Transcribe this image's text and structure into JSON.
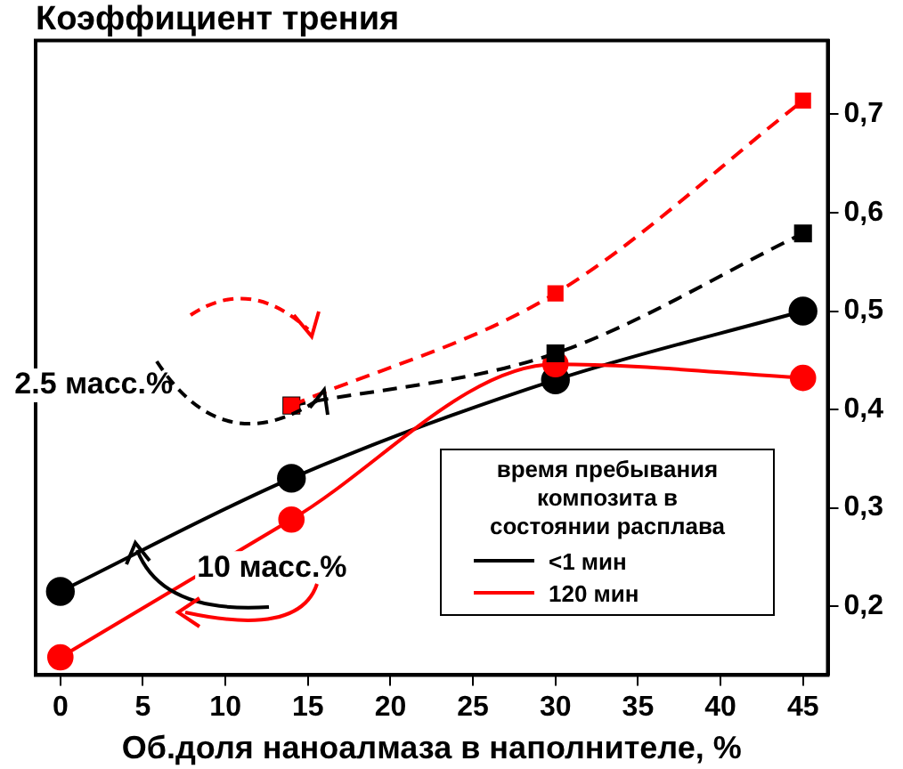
{
  "chart_data": {
    "type": "line",
    "title": "Коэффициент трения",
    "xlabel": "Об.доля наноалмаза в наполнителе, %",
    "legend_title": "время пребывания композита в состоянии расплава",
    "legend": "bottom right",
    "grid": false,
    "xlim": [
      -1.5,
      46.5
    ],
    "xticks": [
      0,
      5,
      10,
      15,
      20,
      25,
      30,
      35,
      40,
      45
    ],
    "ylim": [
      0.13,
      0.775
    ],
    "yticks": [
      {
        "value": 0.2,
        "label": "0,2"
      },
      {
        "value": 0.3,
        "label": "0,3"
      },
      {
        "value": 0.4,
        "label": "0,4"
      },
      {
        "value": 0.5,
        "label": "0,5"
      },
      {
        "value": 0.6,
        "label": "0,6"
      },
      {
        "value": 0.7,
        "label": "0,7"
      }
    ],
    "annotations": [
      {
        "text": "2.5 масс.%",
        "x": 16,
        "y": 0.42
      },
      {
        "text": "10 масс.%",
        "x": 4.5,
        "y": 0.265
      }
    ],
    "series": [
      {
        "name": "<1 мин",
        "color": "#000000",
        "x": [
          0,
          14,
          30,
          45
        ],
        "values": [
          0.215,
          0.33,
          0.43,
          0.5
        ],
        "marker": "circle",
        "line_style": "solid"
      },
      {
        "name": "120 мин",
        "color": "#ff0000",
        "x": [
          0,
          14,
          30,
          45
        ],
        "values": [
          0.148,
          0.288,
          0.446,
          0.432
        ],
        "marker": "circle",
        "line_style": "solid"
      },
      {
        "color": "#000000",
        "x": [
          14,
          30,
          45
        ],
        "values": [
          0.404,
          0.457,
          0.579
        ],
        "marker": "square",
        "line_style": "dashed"
      },
      {
        "color": "#ff0000",
        "x": [
          14,
          30,
          45
        ],
        "values": [
          0.404,
          0.518,
          0.714
        ],
        "marker": "square",
        "line_style": "dashed"
      }
    ]
  }
}
